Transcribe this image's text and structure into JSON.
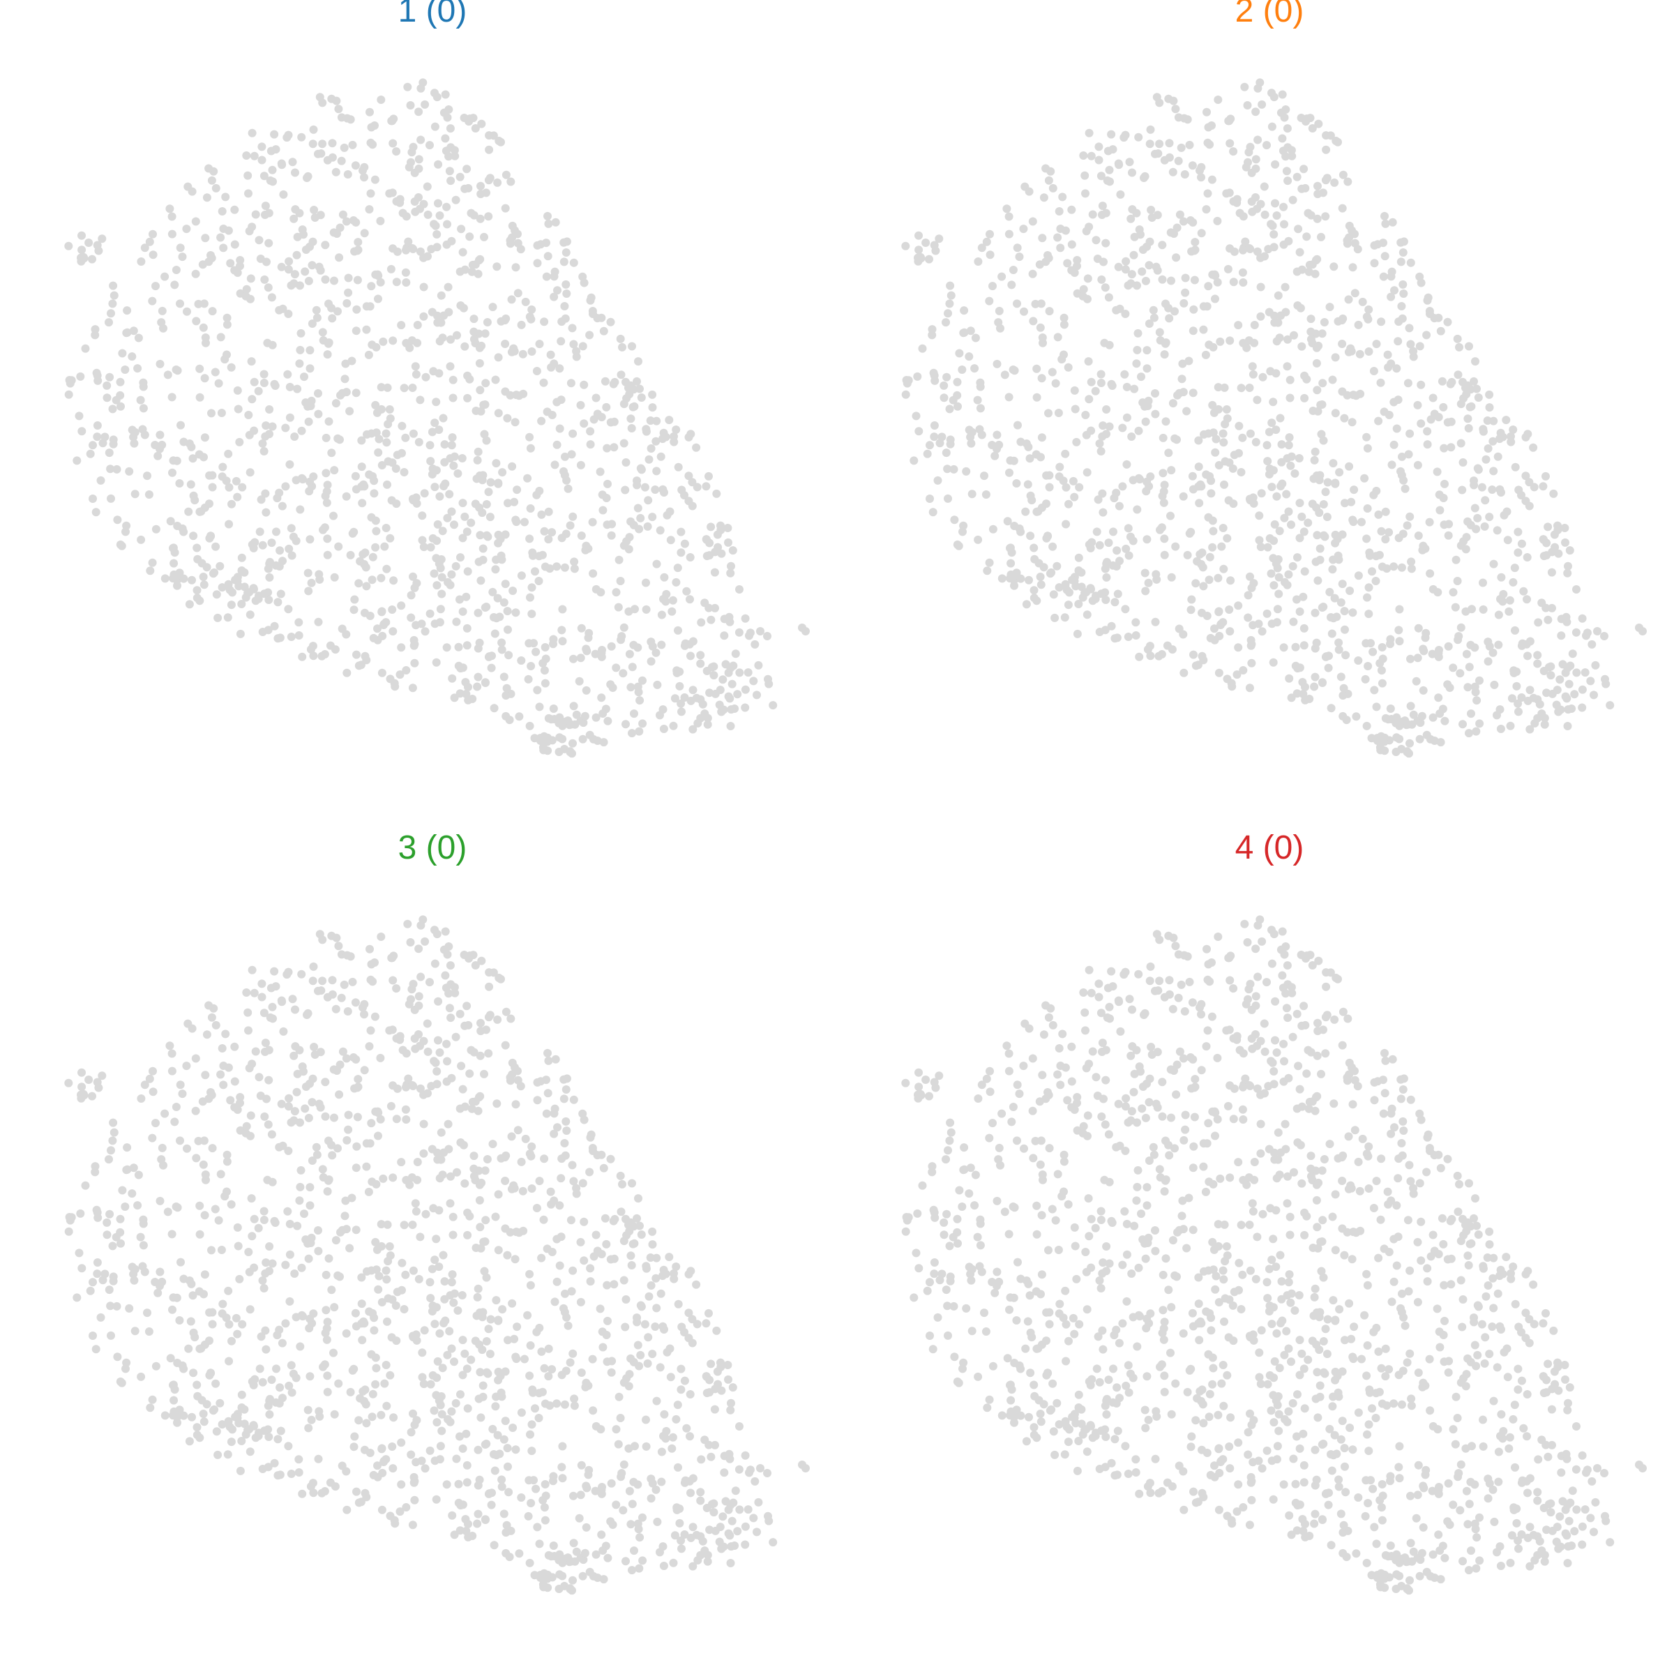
{
  "chart_data": [
    {
      "type": "scatter",
      "title": "1 (0)",
      "title_color": "#1f77b4",
      "point_color": "#d9d9d9",
      "grid": false,
      "axes": false,
      "highlighted_count": 0
    },
    {
      "type": "scatter",
      "title": "2 (0)",
      "title_color": "#ff7f0e",
      "point_color": "#d9d9d9",
      "grid": false,
      "axes": false,
      "highlighted_count": 0
    },
    {
      "type": "scatter",
      "title": "3 (0)",
      "title_color": "#2ca02c",
      "point_color": "#d9d9d9",
      "grid": false,
      "axes": false,
      "highlighted_count": 0
    },
    {
      "type": "scatter",
      "title": "4 (0)",
      "title_color": "#d62728",
      "point_color": "#d9d9d9",
      "grid": false,
      "axes": false,
      "highlighted_count": 0
    }
  ]
}
